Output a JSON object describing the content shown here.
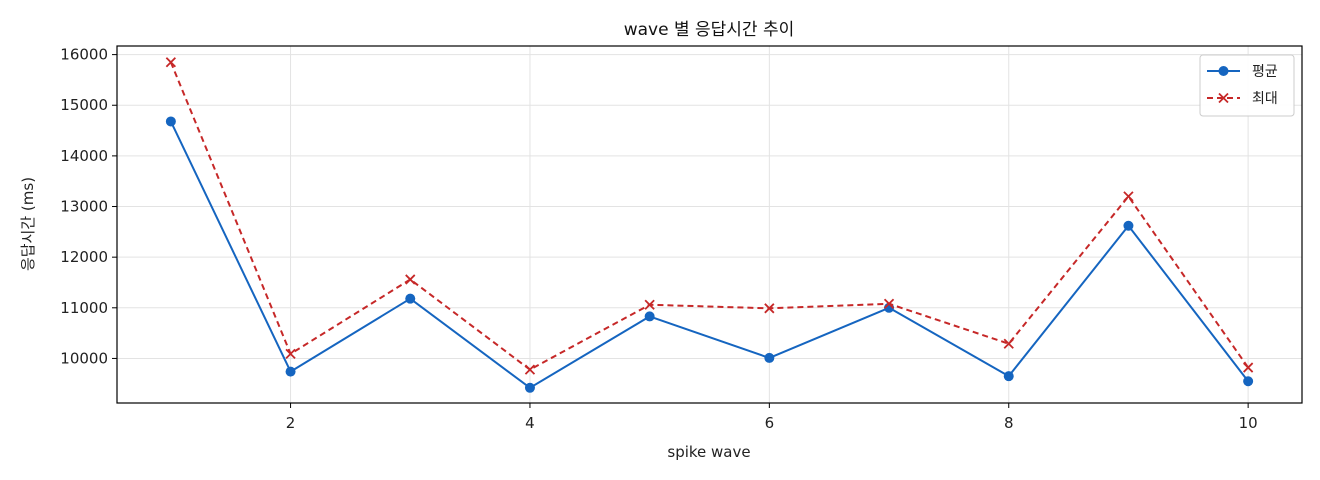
{
  "chart_data": {
    "type": "line",
    "title": "wave 별 응답시간 추이",
    "xlabel": "spike wave",
    "ylabel": "응답시간 (ms)",
    "x": [
      1,
      2,
      3,
      4,
      5,
      6,
      7,
      8,
      9,
      10
    ],
    "xlim": [
      0.55,
      10.45
    ],
    "ylim": [
      9120,
      16170
    ],
    "x_ticks": [
      2,
      4,
      6,
      8,
      10
    ],
    "y_ticks": [
      10000,
      11000,
      12000,
      13000,
      14000,
      15000,
      16000
    ],
    "grid": true,
    "legend_position": "top-right",
    "series": [
      {
        "name": "평균",
        "color": "#1565c0",
        "marker": "circle",
        "line_style": "solid",
        "values": [
          14680,
          9740,
          11180,
          9420,
          10830,
          10010,
          11000,
          9650,
          12620,
          9550
        ]
      },
      {
        "name": "최대",
        "color": "#c62828",
        "marker": "x",
        "line_style": "dashed",
        "values": [
          15850,
          10090,
          11560,
          9780,
          11060,
          10990,
          11080,
          10290,
          13200,
          9820
        ]
      }
    ]
  }
}
